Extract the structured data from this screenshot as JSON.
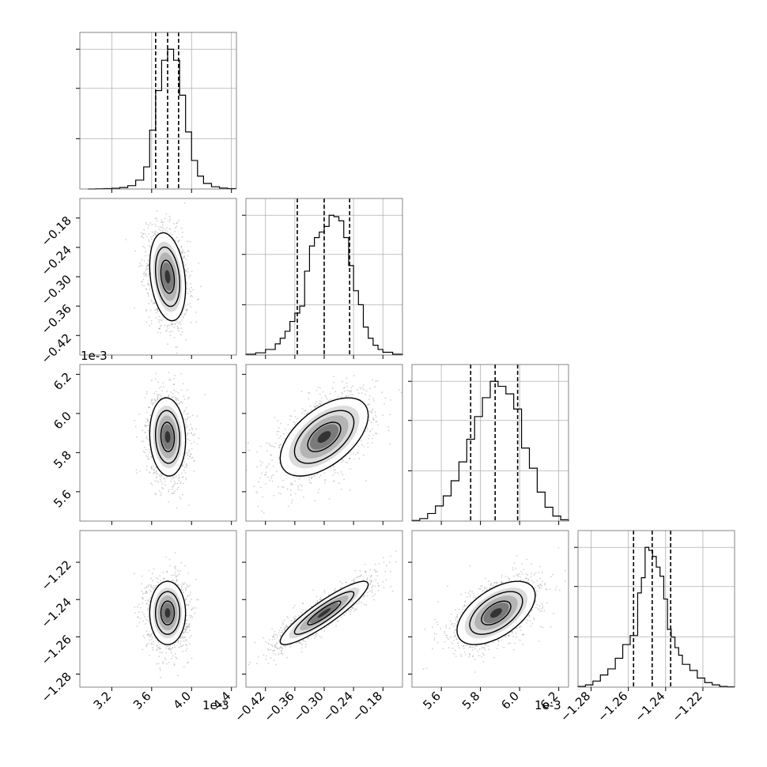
{
  "chart_data": {
    "type": "corner",
    "parameters": [
      {
        "range": [
          2.88,
          4.45
        ],
        "offset": "1e-3",
        "ticks": [
          3.2,
          3.6,
          4.0,
          4.4
        ],
        "tick_labels": [
          "3.2",
          "3.6",
          "4.0",
          "4.4"
        ],
        "quantiles": [
          3.64,
          3.76,
          3.87
        ],
        "hist_edges": [
          2.96,
          3.04,
          3.12,
          3.2,
          3.28,
          3.36,
          3.44,
          3.52,
          3.58,
          3.64,
          3.7,
          3.76,
          3.82,
          3.88,
          3.94,
          4.0,
          4.06,
          4.12,
          4.2,
          4.28,
          4.36,
          4.44
        ],
        "hist": [
          0,
          1,
          2,
          4,
          8,
          18,
          48,
          120,
          320,
          535,
          700,
          760,
          700,
          510,
          310,
          155,
          70,
          30,
          12,
          5,
          2
        ]
      },
      {
        "range": [
          -0.46,
          -0.14
        ],
        "offset": "",
        "ticks": [
          -0.42,
          -0.36,
          -0.3,
          -0.24,
          -0.18
        ],
        "tick_labels": [
          "−0.42",
          "−0.36",
          "−0.30",
          "−0.24",
          "−0.18"
        ],
        "quantiles": [
          -0.355,
          -0.3,
          -0.248
        ],
        "hist_edges": [
          -0.46,
          -0.44,
          -0.42,
          -0.4,
          -0.39,
          -0.38,
          -0.37,
          -0.36,
          -0.35,
          -0.34,
          -0.33,
          -0.32,
          -0.31,
          -0.3,
          -0.29,
          -0.28,
          -0.27,
          -0.26,
          -0.25,
          -0.24,
          -0.23,
          -0.22,
          -0.21,
          -0.2,
          -0.19,
          -0.18,
          -0.16,
          -0.14
        ],
        "hist": [
          3,
          8,
          20,
          40,
          60,
          85,
          120,
          150,
          175,
          300,
          390,
          420,
          440,
          460,
          500,
          495,
          480,
          420,
          320,
          230,
          180,
          100,
          60,
          35,
          20,
          10,
          3
        ]
      },
      {
        "range": [
          5.45,
          6.25
        ],
        "offset": "1e-3",
        "ticks": [
          5.6,
          5.8,
          6.0,
          6.2
        ],
        "tick_labels": [
          "5.6",
          "5.8",
          "6.0",
          "6.2"
        ],
        "quantiles": [
          5.75,
          5.875,
          5.99
        ],
        "hist_edges": [
          5.45,
          5.49,
          5.53,
          5.57,
          5.61,
          5.65,
          5.69,
          5.73,
          5.77,
          5.81,
          5.85,
          5.89,
          5.93,
          5.97,
          6.01,
          6.05,
          6.09,
          6.13,
          6.17,
          6.21,
          6.25
        ],
        "hist": [
          5,
          20,
          60,
          120,
          200,
          320,
          470,
          650,
          830,
          980,
          1110,
          1070,
          1010,
          890,
          580,
          420,
          230,
          110,
          40,
          10
        ]
      },
      {
        "range": [
          -1.287,
          -1.203
        ],
        "offset": "",
        "ticks": [
          -1.28,
          -1.26,
          -1.24,
          -1.22
        ],
        "tick_labels": [
          "−1.28",
          "−1.26",
          "−1.24",
          "−1.22"
        ],
        "quantiles": [
          -1.2572,
          -1.2472,
          -1.2373
        ],
        "hist_edges": [
          -1.287,
          -1.283,
          -1.279,
          -1.275,
          -1.271,
          -1.267,
          -1.263,
          -1.259,
          -1.255,
          -1.253,
          -1.251,
          -1.249,
          -1.247,
          -1.245,
          -1.243,
          -1.241,
          -1.239,
          -1.237,
          -1.235,
          -1.233,
          -1.231,
          -1.227,
          -1.223,
          -1.219,
          -1.215,
          -1.211,
          -1.207,
          -1.203
        ],
        "hist": [
          5,
          15,
          40,
          80,
          120,
          190,
          280,
          340,
          620,
          720,
          920,
          900,
          860,
          790,
          730,
          580,
          380,
          330,
          260,
          210,
          150,
          110,
          60,
          30,
          15,
          5,
          2
        ]
      }
    ],
    "pairs": [
      {
        "row": 1,
        "col": 0,
        "center": [
          3.76,
          -0.3
        ],
        "sigma": [
          0.09,
          0.045
        ],
        "corr": -0.25
      },
      {
        "row": 2,
        "col": 0,
        "center": [
          3.76,
          5.88
        ],
        "sigma": [
          0.09,
          0.1
        ],
        "corr": -0.08
      },
      {
        "row": 2,
        "col": 1,
        "center": [
          -0.3,
          5.88
        ],
        "sigma": [
          0.045,
          0.1
        ],
        "corr": 0.55
      },
      {
        "row": 3,
        "col": 0,
        "center": [
          3.76,
          -1.2472
        ],
        "sigma": [
          0.09,
          0.0085
        ],
        "corr": 0.0
      },
      {
        "row": 3,
        "col": 1,
        "center": [
          -0.3,
          -1.2472
        ],
        "sigma": [
          0.045,
          0.0085
        ],
        "corr": 0.9
      },
      {
        "row": 3,
        "col": 2,
        "center": [
          5.88,
          -1.2472
        ],
        "sigma": [
          0.1,
          0.0085
        ],
        "corr": 0.55
      }
    ],
    "offset_labels": [
      "1e-3",
      "1e-3",
      "1e-3"
    ],
    "grid": true
  }
}
